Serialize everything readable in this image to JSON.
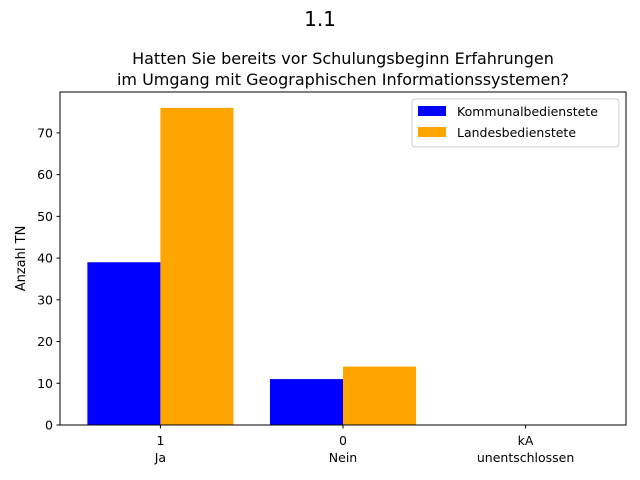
{
  "chart_data": {
    "type": "bar",
    "suptitle": "1.1",
    "title_lines": [
      "Hatten Sie bereits vor Schulungsbeginn Erfahrungen",
      "im Umgang mit Geographischen Informationssystemen?"
    ],
    "ylabel": "Anzahl TN",
    "categories": [
      {
        "code": "1",
        "label": "Ja"
      },
      {
        "code": "0",
        "label": "Nein"
      },
      {
        "code": "kA",
        "label": "unentschlossen"
      }
    ],
    "series": [
      {
        "name": "Kommunalbedienstete",
        "color": "#0000ff",
        "values": [
          39,
          11,
          0
        ]
      },
      {
        "name": "Landesbedienstete",
        "color": "#ffa500",
        "values": [
          76,
          14,
          0
        ]
      }
    ],
    "ylim": [
      0,
      79.8
    ],
    "yticks": [
      0,
      10,
      20,
      30,
      40,
      50,
      60,
      70
    ],
    "legend_position": "top-right",
    "grid": false
  }
}
